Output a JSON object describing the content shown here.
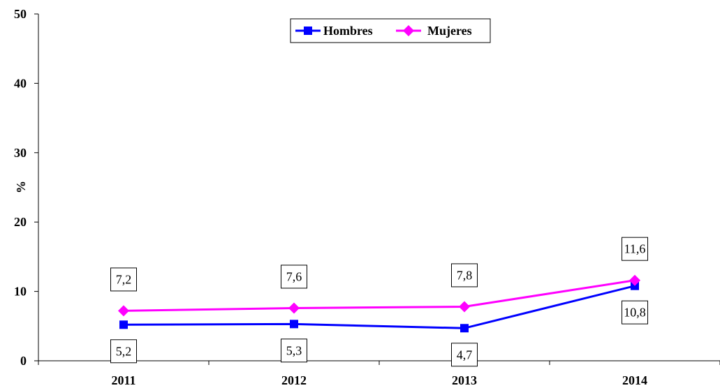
{
  "chart_data": {
    "type": "line",
    "categories": [
      "2011",
      "2012",
      "2013",
      "2014"
    ],
    "series": [
      {
        "name": "Hombres",
        "values": [
          5.2,
          5.3,
          4.7,
          10.8
        ],
        "labels": [
          "5,2",
          "5,3",
          "4,7",
          "10,8"
        ],
        "color": "#0000ff",
        "marker": "square"
      },
      {
        "name": "Mujeres",
        "values": [
          7.2,
          7.6,
          7.8,
          11.6
        ],
        "labels": [
          "7,2",
          "7,6",
          "7,8",
          "11,6"
        ],
        "color": "#ff00ff",
        "marker": "diamond"
      }
    ],
    "xlabel": "",
    "ylabel": "%",
    "ylim": [
      0,
      50
    ],
    "yticks": [
      "0",
      "10",
      "20",
      "30",
      "40",
      "50"
    ],
    "grid": false,
    "legend_position": "top-center"
  }
}
